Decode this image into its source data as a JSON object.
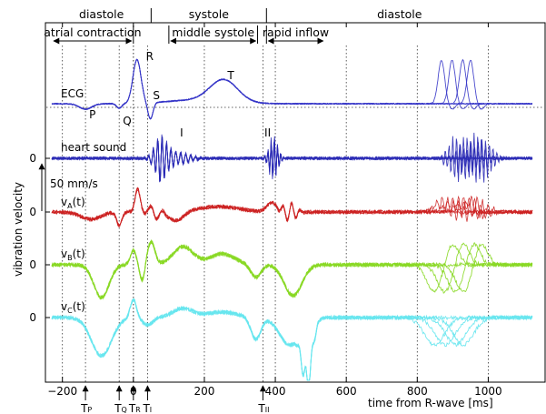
{
  "chart_data": {
    "type": "line",
    "xlabel": "time from R-wave [ms]",
    "ylabel": "vibration velocity",
    "xlim": [
      -230,
      1125
    ],
    "xticks": [
      {
        "value": -200,
        "label": "−200"
      },
      {
        "value": 0,
        "label": "0"
      },
      {
        "value": 200,
        "label": "200"
      },
      {
        "value": 400,
        "label": "400"
      },
      {
        "value": 600,
        "label": "600"
      },
      {
        "value": 800,
        "label": "800"
      },
      {
        "value": 1000,
        "label": "1000"
      }
    ],
    "zero_labels": [
      "0",
      "0",
      "0",
      "0"
    ],
    "grid": "dotted vertical at time ticks",
    "scale_bar": {
      "value": 50,
      "unit": "mm/s",
      "label": "50 mm/s"
    },
    "phases_top": [
      {
        "label": "diastole",
        "start": -230,
        "end": 50
      },
      {
        "label": "systole",
        "start": 50,
        "end": 375
      },
      {
        "label": "diastole",
        "start": 375,
        "end": 1125
      }
    ],
    "phases_sub": [
      {
        "label": "atrial contraction",
        "start": -230,
        "end": 0
      },
      {
        "label": "middle systole",
        "start": 100,
        "end": 350
      },
      {
        "label": "rapid inflow",
        "start": 375,
        "end": 540
      }
    ],
    "time_markers": [
      {
        "name": "P",
        "label": "T",
        "sub": "P",
        "value": -135
      },
      {
        "name": "Q",
        "label": "T",
        "sub": "Q",
        "value": -40
      },
      {
        "name": "R",
        "label": "T",
        "sub": "R",
        "value": 0
      },
      {
        "name": "I",
        "label": "T",
        "sub": "I",
        "value": 40
      },
      {
        "name": "II",
        "label": "T",
        "sub": "II",
        "value": 365
      }
    ],
    "ecg_annotations": [
      {
        "label": "P",
        "t": -135
      },
      {
        "label": "Q",
        "t": -40
      },
      {
        "label": "R",
        "t": 25
      },
      {
        "label": "S",
        "t": 45
      },
      {
        "label": "T",
        "t": 255
      }
    ],
    "sound_annotations": [
      {
        "label": "I",
        "t": 80
      },
      {
        "label": "II",
        "t": 400
      }
    ],
    "series": [
      {
        "name": "ECG",
        "label": "ECG",
        "color": "#3535c8"
      },
      {
        "name": "heart sound",
        "label": "heart sound",
        "color": "#2a2ab5"
      },
      {
        "name": "vA(t)",
        "label": "v",
        "sub": "A",
        "suffix": "(t)",
        "color": "#cc2020"
      },
      {
        "name": "vB(t)",
        "label": "v",
        "sub": "B",
        "suffix": "(t)",
        "color": "#88d824"
      },
      {
        "name": "vC(t)",
        "label": "v",
        "sub": "C",
        "suffix": "(t)",
        "color": "#66e6ee"
      }
    ]
  }
}
